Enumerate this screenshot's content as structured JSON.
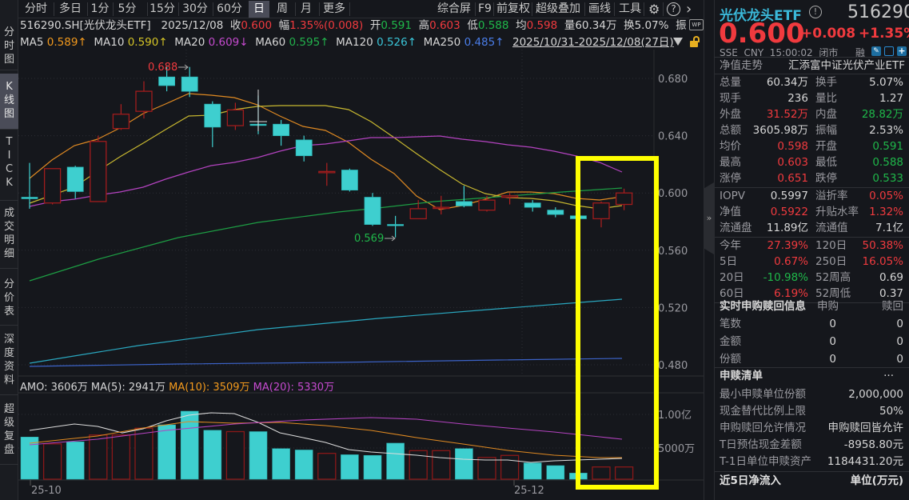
{
  "left_tabs": [
    {
      "label": "分\n时\n图",
      "active": false
    },
    {
      "label": "K\n线\n图",
      "active": true
    },
    {
      "label": "T\nI\nC\nK",
      "active": false
    },
    {
      "label": "成\n交\n明\n细",
      "active": false
    },
    {
      "label": "分\n价\n表",
      "active": false
    },
    {
      "label": "深\n度\n资\n料",
      "active": false
    },
    {
      "label": "超\n级\n复\n盘",
      "active": false
    }
  ],
  "period_tabs": [
    {
      "label": "分时"
    },
    {
      "label": "多日"
    },
    {
      "label": "1分"
    },
    {
      "label": "5分"
    },
    {
      "label": "15分"
    },
    {
      "label": "30分"
    },
    {
      "label": "60分"
    },
    {
      "label": "日",
      "active": true
    },
    {
      "label": "周"
    },
    {
      "label": "月"
    },
    {
      "label": "更多"
    }
  ],
  "toolbar_right": {
    "composite": "综合屏",
    "f9": "F9",
    "adjust": "前复权",
    "overlay": "超级叠加",
    "draw": "画线",
    "tools": "工具",
    "settings_icon": "⚙",
    "help_icon": "?",
    "more_icon": "›"
  },
  "quote_line": {
    "code": "516290.SH[光伏龙头ETF]",
    "date": "2025/12/08",
    "close_label": "收",
    "close": "0.600",
    "change_label": "幅",
    "change": "1.35%(0.008)",
    "open_label": "开",
    "open": "0.591",
    "high_label": "高",
    "high": "0.603",
    "low_label": "低",
    "low": "0.588",
    "avg_label": "均",
    "avg": "0.598",
    "volume_label": "量",
    "volume": "60.34万",
    "turnover_label": "换",
    "turnover": "5.07%",
    "amplitude_label": "振"
  },
  "ma_line": {
    "ma5_label": "MA5",
    "ma5": "0.589↑",
    "ma10_label": "MA10",
    "ma10": "0.590↑",
    "ma20_label": "MA20",
    "ma20": "0.609↓",
    "ma60_label": "MA60",
    "ma60": "0.595↑",
    "ma120_label": "MA120",
    "ma120": "0.526↑",
    "ma250_label": "MA250",
    "ma250": "0.485↑",
    "range": "2025/10/31-2025/12/08(27日)"
  },
  "volume_line": {
    "amo": "AMO: 3606万",
    "ma5": "MA(5): 2941万",
    "ma10": "MA(10): 3509万",
    "ma20": "MA(20): 5330万"
  },
  "colors": {
    "up": "#f03a3e",
    "down": "#1fb84a",
    "bear_candle": "#3ecfcf",
    "bull_candle": "#8b1a1a",
    "ma5": "#e08a22",
    "ma10": "#c8b830",
    "ma20": "#b443c0",
    "ma60": "#1d9e44",
    "ma120": "#2aa8c0",
    "ma250": "#3c63c8",
    "highlight": "#ffff00"
  },
  "chart_data": {
    "type": "candlestick",
    "price_axis": {
      "ticks": [
        "0.680",
        "0.640",
        "0.600",
        "0.560",
        "0.520",
        "0.480"
      ],
      "range": [
        0.465,
        0.695
      ]
    },
    "volume_axis": {
      "ticks": [
        "1.00亿",
        "5000万"
      ]
    },
    "x_labels": [
      "25-10",
      "25-12"
    ],
    "annotations": [
      {
        "label": "0.688",
        "type": "high"
      },
      {
        "label": "0.569",
        "type": "low"
      }
    ],
    "candles": [
      {
        "o": 0.597,
        "c": 0.596,
        "h": 0.621,
        "l": 0.589,
        "bull": false
      },
      {
        "o": 0.593,
        "c": 0.617,
        "h": 0.617,
        "l": 0.592,
        "bull": true
      },
      {
        "o": 0.618,
        "c": 0.601,
        "h": 0.619,
        "l": 0.596,
        "bull": false
      },
      {
        "o": 0.594,
        "c": 0.636,
        "h": 0.64,
        "l": 0.594,
        "bull": true
      },
      {
        "o": 0.645,
        "c": 0.655,
        "h": 0.662,
        "l": 0.644,
        "bull": true
      },
      {
        "o": 0.657,
        "c": 0.671,
        "h": 0.678,
        "l": 0.652,
        "bull": true
      },
      {
        "o": 0.681,
        "c": 0.675,
        "h": 0.688,
        "l": 0.671,
        "bull": false
      },
      {
        "o": 0.681,
        "c": 0.671,
        "h": 0.688,
        "l": 0.667,
        "bull": false
      },
      {
        "o": 0.662,
        "c": 0.646,
        "h": 0.664,
        "l": 0.632,
        "bull": false
      },
      {
        "o": 0.647,
        "c": 0.658,
        "h": 0.663,
        "l": 0.644,
        "bull": true
      },
      {
        "o": 0.648,
        "c": 0.648,
        "h": 0.668,
        "l": 0.641,
        "bull": false
      },
      {
        "o": 0.648,
        "c": 0.64,
        "h": 0.651,
        "l": 0.633,
        "bull": false
      },
      {
        "o": 0.637,
        "c": 0.626,
        "h": 0.64,
        "l": 0.622,
        "bull": false
      },
      {
        "o": 0.615,
        "c": 0.615,
        "h": 0.621,
        "l": 0.605,
        "bull": true
      },
      {
        "o": 0.616,
        "c": 0.602,
        "h": 0.617,
        "l": 0.601,
        "bull": false
      },
      {
        "o": 0.597,
        "c": 0.578,
        "h": 0.6,
        "l": 0.577,
        "bull": false
      },
      {
        "o": 0.578,
        "c": 0.578,
        "h": 0.584,
        "l": 0.569,
        "bull": false
      },
      {
        "o": 0.582,
        "c": 0.589,
        "h": 0.595,
        "l": 0.582,
        "bull": true
      },
      {
        "o": 0.59,
        "c": 0.59,
        "h": 0.598,
        "l": 0.585,
        "bull": true
      },
      {
        "o": 0.591,
        "c": 0.594,
        "h": 0.605,
        "l": 0.59,
        "bull": false
      },
      {
        "o": 0.588,
        "c": 0.595,
        "h": 0.598,
        "l": 0.587,
        "bull": true
      },
      {
        "o": 0.597,
        "c": 0.598,
        "h": 0.6,
        "l": 0.592,
        "bull": true
      },
      {
        "o": 0.593,
        "c": 0.59,
        "h": 0.595,
        "l": 0.587,
        "bull": false
      },
      {
        "o": 0.588,
        "c": 0.585,
        "h": 0.59,
        "l": 0.583,
        "bull": false
      },
      {
        "o": 0.584,
        "c": 0.582,
        "h": 0.585,
        "l": 0.582,
        "bull": false
      },
      {
        "o": 0.582,
        "c": 0.593,
        "h": 0.594,
        "l": 0.576,
        "bull": true
      },
      {
        "o": 0.592,
        "c": 0.6,
        "h": 0.603,
        "l": 0.588,
        "bull": true
      }
    ],
    "volumes": [
      0.62,
      0.52,
      0.55,
      0.65,
      0.65,
      0.75,
      0.8,
      1.0,
      0.72,
      0.7,
      0.7,
      0.45,
      0.43,
      0.38,
      0.36,
      0.35,
      0.53,
      0.42,
      0.42,
      0.45,
      0.32,
      0.35,
      0.24,
      0.2,
      0.09,
      0.18,
      0.18
    ],
    "series": [
      {
        "name": "MA5",
        "last": 0.589
      },
      {
        "name": "MA10",
        "last": 0.59
      },
      {
        "name": "MA20",
        "last": 0.609
      },
      {
        "name": "MA60",
        "last": 0.595
      },
      {
        "name": "MA120",
        "last": 0.526
      },
      {
        "name": "MA250",
        "last": 0.485
      }
    ]
  },
  "right_panel": {
    "name": "光伏龙头ETF",
    "code": "516290",
    "price": "0.600",
    "change": "+0.008",
    "change_pct": "+1.35%",
    "exchange": "SSE",
    "currency": "CNY",
    "time": "15:00:02",
    "status": "闭市",
    "margin": "融",
    "nav_label": "净值走势",
    "fund_name": "汇添富中证光伏产业ETF",
    "stats": [
      {
        "l1": "总量",
        "v1": "60.34万",
        "c1": "white",
        "l2": "换手",
        "v2": "5.07%",
        "c2": "white"
      },
      {
        "l1": "现手",
        "v1": "236",
        "c1": "white",
        "l2": "量比",
        "v2": "1.27",
        "c2": "white"
      },
      {
        "l1": "外盘",
        "v1": "31.52万",
        "c1": "red",
        "l2": "内盘",
        "v2": "28.82万",
        "c2": "green"
      },
      {
        "l1": "总额",
        "v1": "3605.98万",
        "c1": "white",
        "l2": "振幅",
        "v2": "2.53%",
        "c2": "white"
      },
      {
        "l1": "均价",
        "v1": "0.598",
        "c1": "red",
        "l2": "开盘",
        "v2": "0.591",
        "c2": "green"
      },
      {
        "l1": "最高",
        "v1": "0.603",
        "c1": "red",
        "l2": "最低",
        "v2": "0.588",
        "c2": "green"
      },
      {
        "l1": "涨停",
        "v1": "0.651",
        "c1": "red",
        "l2": "跌停",
        "v2": "0.533",
        "c2": "green"
      }
    ],
    "iopv": [
      {
        "l1": "IOPV",
        "v1": "0.5997",
        "c1": "white",
        "l2": "溢折率",
        "v2": "0.05%",
        "c2": "red"
      },
      {
        "l1": "净值",
        "v1": "0.5922",
        "c1": "red",
        "l2": "升贴水率",
        "v2": "1.32%",
        "c2": "red"
      },
      {
        "l1": "流通盘",
        "v1": "11.89亿",
        "c1": "white",
        "l2": "流通值",
        "v2": "7.1亿",
        "c2": "white"
      }
    ],
    "perf": [
      {
        "l1": "今年",
        "v1": "27.39%",
        "c1": "red",
        "l2": "120日",
        "v2": "50.38%",
        "c2": "red"
      },
      {
        "l1": "5日",
        "v1": "0.67%",
        "c1": "red",
        "l2": "250日",
        "v2": "16.05%",
        "c2": "red"
      },
      {
        "l1": "20日",
        "v1": "-10.98%",
        "c1": "green",
        "l2": "52周高",
        "v2": "0.69",
        "c2": "white"
      },
      {
        "l1": "60日",
        "v1": "6.19%",
        "c1": "red",
        "l2": "52周低",
        "v2": "0.37",
        "c2": "white"
      }
    ],
    "realtime": {
      "title": "实时申购赎回信息",
      "col1": "申购",
      "col2": "赎回",
      "rows": [
        {
          "label": "笔数",
          "v1": "0",
          "v2": "0"
        },
        {
          "label": "金额",
          "v1": "0",
          "v2": "0"
        },
        {
          "label": "份额",
          "v1": "0",
          "v2": "0"
        }
      ]
    },
    "creation": {
      "title": "申赎清单",
      "more": "···",
      "rows": [
        {
          "label": "最小申赎单位份额",
          "value": "2,000,000"
        },
        {
          "label": "现金替代比例上限",
          "value": "50%"
        },
        {
          "label": "申购赎回允许情况",
          "value": "申购赎回皆允许"
        },
        {
          "label": "T日预估现金差额",
          "value": "-8958.80元"
        },
        {
          "label": "T-1日单位申赎资产",
          "value": "1184431.20元"
        }
      ]
    },
    "inflow": {
      "title": "近5日净流入",
      "unit": "单位(万元)"
    }
  }
}
